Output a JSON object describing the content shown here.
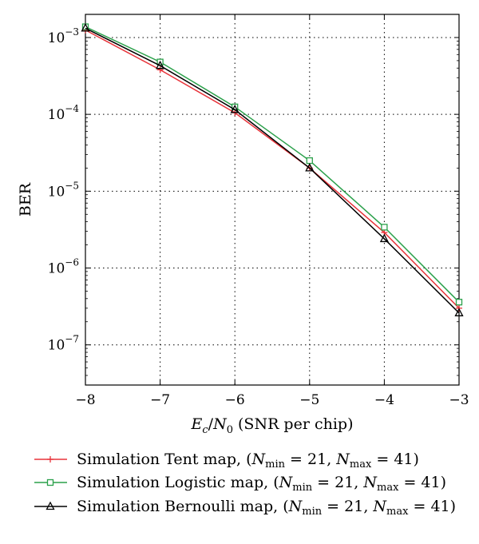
{
  "chart_data": {
    "type": "line",
    "ylabel": "BER",
    "xlabel": {
      "E": "E",
      "c": "c",
      "slash": "/",
      "N": "N",
      "zero": "0",
      "rest": " (SNR per chip)"
    },
    "x": [
      -8,
      -7,
      -6,
      -5,
      -4,
      -3
    ],
    "xlim": [
      -8,
      -3
    ],
    "ylim": [
      3e-08,
      0.002
    ],
    "y_scale": "log",
    "grid": true,
    "grid_style": "dotted",
    "x_tick_values": [
      -8,
      -7,
      -6,
      -5,
      -4,
      -3
    ],
    "x_tick_labels": [
      "−8",
      "−7",
      "−6",
      "−5",
      "−4",
      "−3"
    ],
    "y_tick_values": [
      0.001,
      0.0001,
      1e-05,
      1e-06,
      1e-07
    ],
    "y_tick_labels": [
      {
        "base": "10",
        "exp": "−3"
      },
      {
        "base": "10",
        "exp": "−4"
      },
      {
        "base": "10",
        "exp": "−5"
      },
      {
        "base": "10",
        "exp": "−6"
      },
      {
        "base": "10",
        "exp": "−7"
      }
    ],
    "legend_position": "bottom",
    "series": [
      {
        "key": "tent",
        "color": "#e8333a",
        "marker": "plus",
        "y": [
          0.00125,
          0.00038,
          0.000105,
          2e-05,
          2.9e-06,
          3e-07
        ],
        "legend": {
          "prefix": "Simulation Tent map, (",
          "N1": "N",
          "sub1": "min",
          "mid": " = 21, ",
          "N2": "N",
          "sub2": "max",
          "suffix": " = 41)"
        }
      },
      {
        "key": "logistic",
        "color": "#2aa04a",
        "marker": "square",
        "y": [
          0.00138,
          0.00048,
          0.000125,
          2.5e-05,
          3.4e-06,
          3.6e-07
        ],
        "legend": {
          "prefix": "Simulation Logistic map, (",
          "N1": "N",
          "sub1": "min",
          "mid": " = 21, ",
          "N2": "N",
          "sub2": "max",
          "suffix": " = 41)"
        }
      },
      {
        "key": "bernoulli",
        "color": "#000000",
        "marker": "triangle",
        "y": [
          0.00132,
          0.00043,
          0.000115,
          2e-05,
          2.4e-06,
          2.6e-07
        ],
        "legend": {
          "prefix": "Simulation Bernoulli map, (",
          "N1": "N",
          "sub1": "min",
          "mid": " = 21, ",
          "N2": "N",
          "sub2": "max",
          "suffix": " = 41)"
        }
      }
    ]
  }
}
